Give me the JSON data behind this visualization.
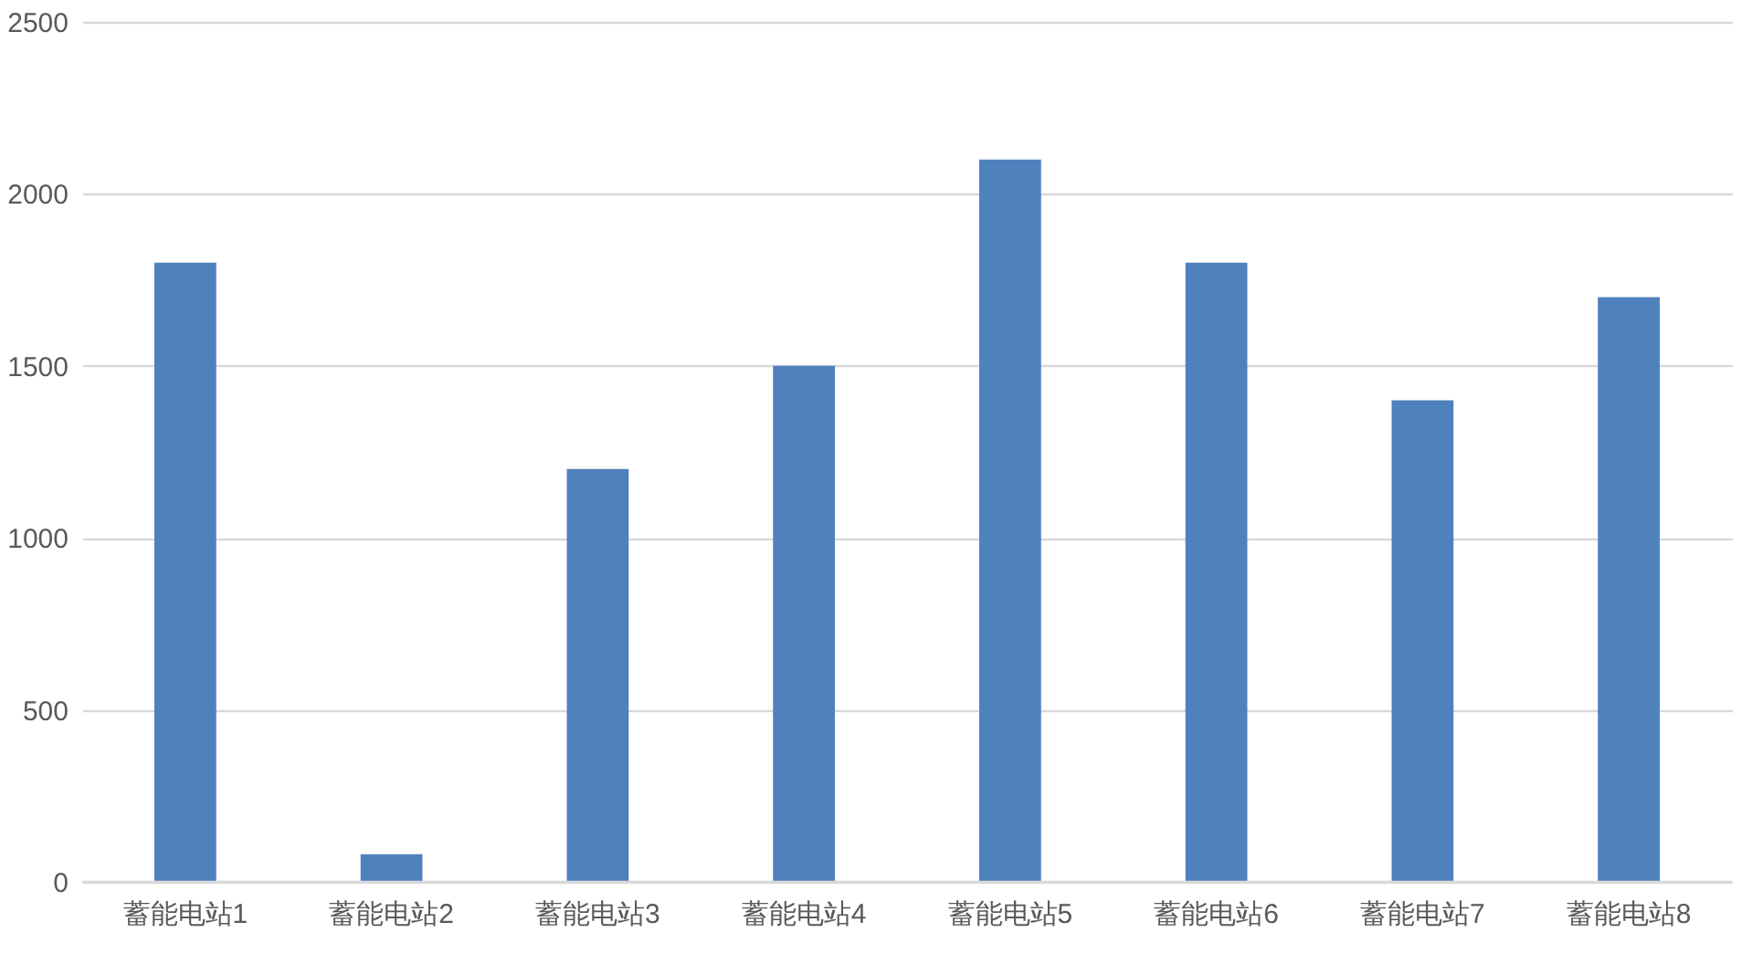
{
  "chart_data": {
    "type": "bar",
    "categories": [
      "蓄能电站1",
      "蓄能电站2",
      "蓄能电站3",
      "蓄能电站4",
      "蓄能电站5",
      "蓄能电站6",
      "蓄能电站7",
      "蓄能电站8"
    ],
    "values": [
      1800,
      80,
      1200,
      1500,
      2100,
      1800,
      1400,
      1700
    ],
    "color": "#4f81bd",
    "ylim": [
      0,
      2500
    ],
    "yticks": [
      0,
      500,
      1000,
      1500,
      2000,
      2500
    ],
    "grid": "y"
  }
}
